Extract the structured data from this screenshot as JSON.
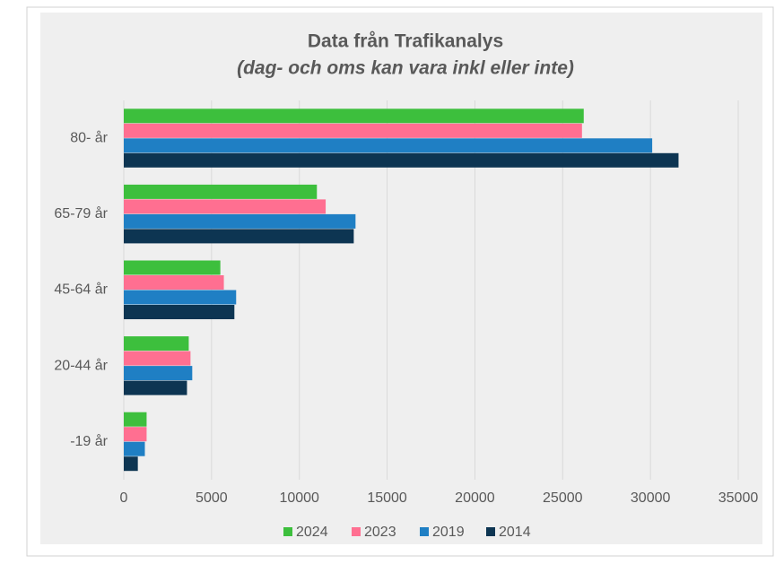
{
  "chart_data": {
    "type": "barh",
    "title": "Data från Trafikanalys",
    "subtitle": "(dag- och oms kan vara inkl eller inte)",
    "categories": [
      "80- år",
      "65-79 år",
      "45-64 år",
      "20-44 år",
      "-19 år"
    ],
    "series": [
      {
        "name": "2024",
        "color": "#3dbf3d",
        "values": [
          26200,
          11000,
          5500,
          3700,
          1300
        ]
      },
      {
        "name": "2023",
        "color": "#ff6f91",
        "values": [
          26100,
          11500,
          5700,
          3800,
          1300
        ]
      },
      {
        "name": "2019",
        "color": "#1f7fc4",
        "values": [
          30100,
          13200,
          6400,
          3900,
          1200
        ]
      },
      {
        "name": "2014",
        "color": "#0d3552",
        "values": [
          31600,
          13100,
          6300,
          3600,
          800
        ]
      }
    ],
    "xlim": [
      0,
      35000
    ],
    "xticks": [
      0,
      5000,
      10000,
      15000,
      20000,
      25000,
      30000,
      35000
    ],
    "grid": true,
    "legend": "bottom"
  }
}
